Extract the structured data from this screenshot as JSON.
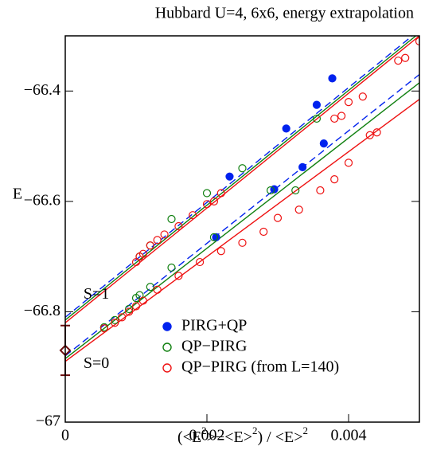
{
  "chart_data": {
    "type": "scatter",
    "title": "Hubbard U=4, 6x6, energy extrapolation",
    "y_label": "E",
    "x_label_parts": [
      "(<E",
      "2",
      ">−<E>",
      "2",
      ") / <E>",
      "2"
    ],
    "xlim": [
      0,
      0.005
    ],
    "ylim": [
      -67,
      -66.3
    ],
    "xticks": [
      0,
      0.002,
      0.004
    ],
    "yticks": [
      {
        "value": -67,
        "label": "−67"
      },
      {
        "value": -66.8,
        "label": "−66.8"
      },
      {
        "value": -66.6,
        "label": "−66.6"
      },
      {
        "value": -66.4,
        "label": "−66.4"
      }
    ],
    "legend": "lower right",
    "series": [
      {
        "name": "PIRG+QP",
        "color": "#0022ee",
        "filled": true,
        "x": [
          0.00213,
          0.00232,
          0.00295,
          0.00312,
          0.00335,
          0.00355,
          0.00365,
          0.00377
        ],
        "values": [
          -66.665,
          -66.555,
          -66.578,
          -66.468,
          -66.538,
          -66.425,
          -66.495,
          -66.377
        ]
      },
      {
        "name": "QP−PIRG",
        "color": "#108010",
        "filled": false,
        "x": [
          0.00055,
          0.0007,
          0.0009,
          0.001,
          0.00105,
          0.0012,
          0.0015,
          0.00105,
          0.0012,
          0.0015,
          0.002,
          0.0021,
          0.0025,
          0.0029,
          0.00325,
          0.00355
        ],
        "values": [
          -66.828,
          -66.815,
          -66.795,
          -66.775,
          -66.77,
          -66.755,
          -66.72,
          -66.7,
          -66.68,
          -66.632,
          -66.585,
          -66.665,
          -66.54,
          -66.58,
          -66.58,
          -66.45
        ]
      },
      {
        "name": "QP−PIRG (from L=140)",
        "color": "#ee1111",
        "filled": false,
        "x": [
          0.00055,
          0.0007,
          0.0008,
          0.0009,
          0.001,
          0.0011,
          0.0013,
          0.0016,
          0.0019,
          0.0022,
          0.0025,
          0.0028,
          0.003,
          0.0033,
          0.0036,
          0.0038,
          0.004,
          0.0043,
          0.0044,
          0.001,
          0.00105,
          0.0011,
          0.0012,
          0.0013,
          0.0014,
          0.0016,
          0.0018,
          0.002,
          0.0021,
          0.0022,
          0.0038,
          0.0039,
          0.004,
          0.0042,
          0.0047,
          0.0048,
          0.005
        ],
        "values": [
          -66.83,
          -66.82,
          -66.81,
          -66.8,
          -66.79,
          -66.78,
          -66.76,
          -66.735,
          -66.71,
          -66.69,
          -66.675,
          -66.655,
          -66.63,
          -66.615,
          -66.58,
          -66.56,
          -66.53,
          -66.48,
          -66.475,
          -66.71,
          -66.7,
          -66.695,
          -66.68,
          -66.67,
          -66.66,
          -66.645,
          -66.625,
          -66.605,
          -66.6,
          -66.585,
          -66.45,
          -66.445,
          -66.42,
          -66.41,
          -66.345,
          -66.34,
          -66.31
        ]
      }
    ],
    "fits": [
      {
        "color": "#108010",
        "dashed": false,
        "x": [
          0,
          0.00495
        ],
        "values": [
          -66.815,
          -66.3
        ]
      },
      {
        "color": "#ee1111",
        "dashed": false,
        "x": [
          0,
          0.005
        ],
        "values": [
          -66.82,
          -66.3
        ]
      },
      {
        "color": "#0022ee",
        "dashed": true,
        "x": [
          0,
          0.0049
        ],
        "values": [
          -66.81,
          -66.3
        ]
      },
      {
        "color": "#0022ee",
        "dashed": true,
        "x": [
          0,
          0.005
        ],
        "values": [
          -66.88,
          -66.37
        ]
      },
      {
        "color": "#108010",
        "dashed": false,
        "x": [
          0,
          0.005
        ],
        "values": [
          -66.885,
          -66.385
        ]
      },
      {
        "color": "#ee1111",
        "dashed": false,
        "x": [
          0,
          0.005
        ],
        "values": [
          -66.89,
          -66.415
        ]
      }
    ],
    "extrapolation": {
      "color": "#6b0a0a",
      "x": 0,
      "value": -66.87,
      "error": 0.045
    },
    "annotations": [
      {
        "text": "S=1",
        "x": 0.0001,
        "y": -66.77
      },
      {
        "text": "S=0",
        "x": 0.0001,
        "y": -66.895
      }
    ]
  }
}
